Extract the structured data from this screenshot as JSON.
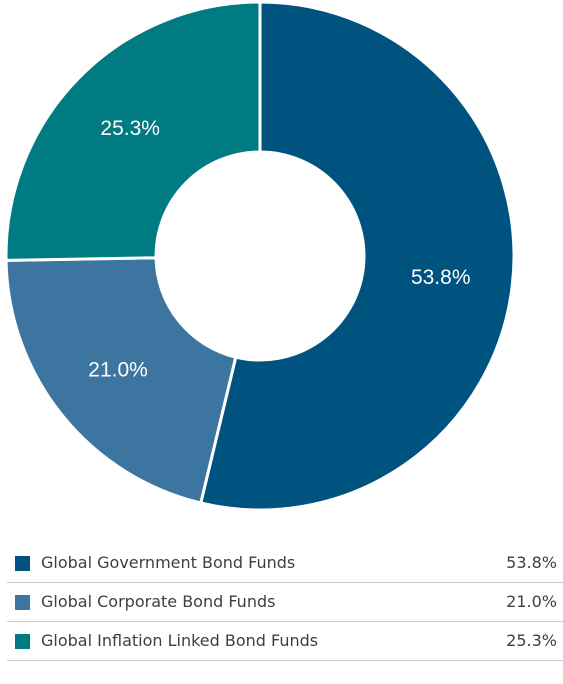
{
  "chart_data": {
    "type": "pie",
    "donut": true,
    "categories": [
      "Global Government Bond Funds",
      "Global Corporate Bond Funds",
      "Global Inflation Linked Bond Funds"
    ],
    "values": [
      53.8,
      21.0,
      25.3
    ],
    "value_labels": [
      "53.8%",
      "21.0%",
      "25.3%"
    ],
    "colors": [
      "#00527f",
      "#3c75a0",
      "#007b81"
    ],
    "start_angle_deg": 0,
    "legend_placement": "bottom"
  }
}
